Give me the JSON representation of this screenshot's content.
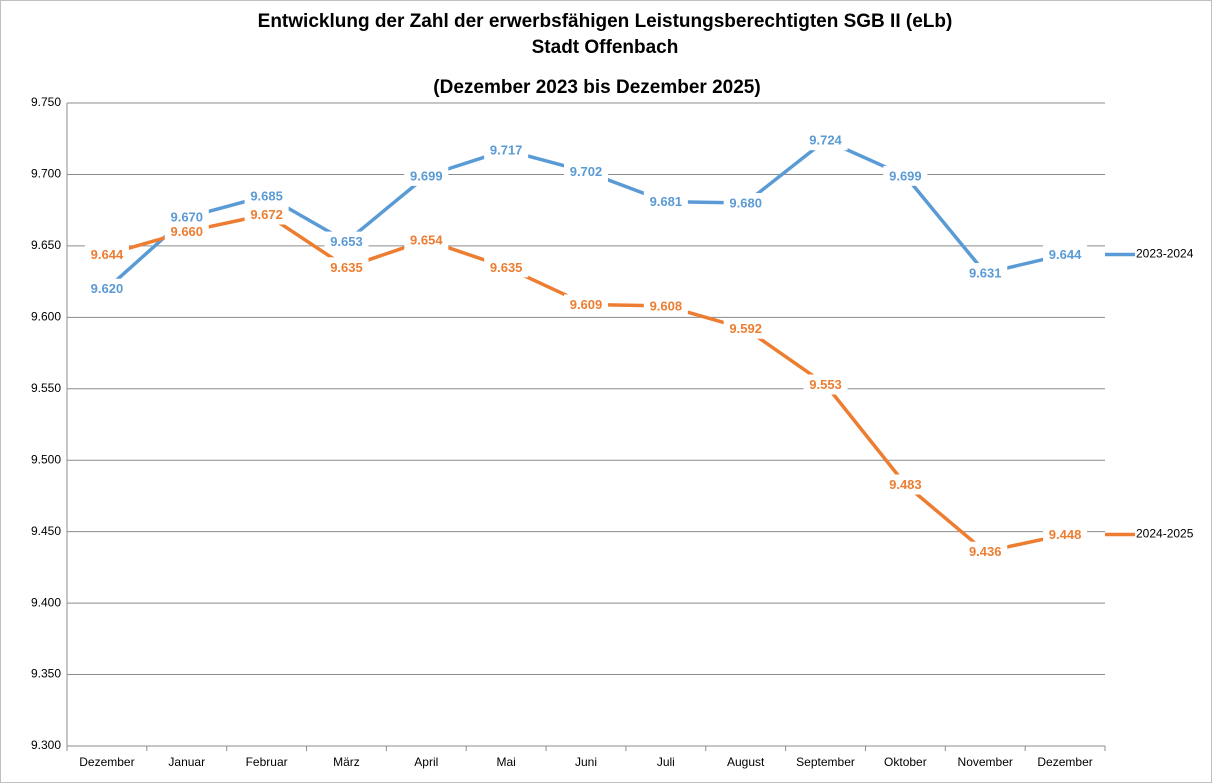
{
  "chart_data": {
    "type": "line",
    "title_lines": [
      "Entwicklung der Zahl der erwerbsfähigen Leistungsberechtigten SGB II (eLb)",
      "Stadt Offenbach",
      "(Dezember 2023 bis Dezember 2025)"
    ],
    "categories": [
      "Dezember",
      "Januar",
      "Februar",
      "März",
      "April",
      "Mai",
      "Juni",
      "Juli",
      "August",
      "September",
      "Oktober",
      "November",
      "Dezember"
    ],
    "series": [
      {
        "name": "2023-2024",
        "color": "#5b9bd5",
        "values": [
          9620,
          9670,
          9685,
          9653,
          9699,
          9717,
          9702,
          9681,
          9680,
          9724,
          9699,
          9631,
          9644
        ],
        "value_labels": [
          "9.620",
          "9.670",
          "9.685",
          "9.653",
          "9.699",
          "9.717",
          "9.702",
          "9.681",
          "9.680",
          "9.724",
          "9.699",
          "9.631",
          "9.644"
        ]
      },
      {
        "name": "2024-2025",
        "color": "#ed7d31",
        "values": [
          9644,
          9660,
          9672,
          9635,
          9654,
          9635,
          9609,
          9608,
          9592,
          9553,
          9483,
          9436,
          9448
        ],
        "value_labels": [
          "9.644",
          "9.660",
          "9.672",
          "9.635",
          "9.654",
          "9.635",
          "9.609",
          "9.608",
          "9.592",
          "9.553",
          "9.483",
          "9.436",
          "9.448"
        ]
      }
    ],
    "ylim": [
      9300,
      9750
    ],
    "yticks": [
      {
        "value": 9300,
        "label": "9.300"
      },
      {
        "value": 9350,
        "label": "9.350"
      },
      {
        "value": 9400,
        "label": "9.400"
      },
      {
        "value": 9450,
        "label": "9.450"
      },
      {
        "value": 9500,
        "label": "9.500"
      },
      {
        "value": 9550,
        "label": "9.550"
      },
      {
        "value": 9600,
        "label": "9.600"
      },
      {
        "value": 9650,
        "label": "9.650"
      },
      {
        "value": 9700,
        "label": "9.700"
      },
      {
        "value": 9750,
        "label": "9.750"
      }
    ],
    "grid": true,
    "legend": "right"
  }
}
